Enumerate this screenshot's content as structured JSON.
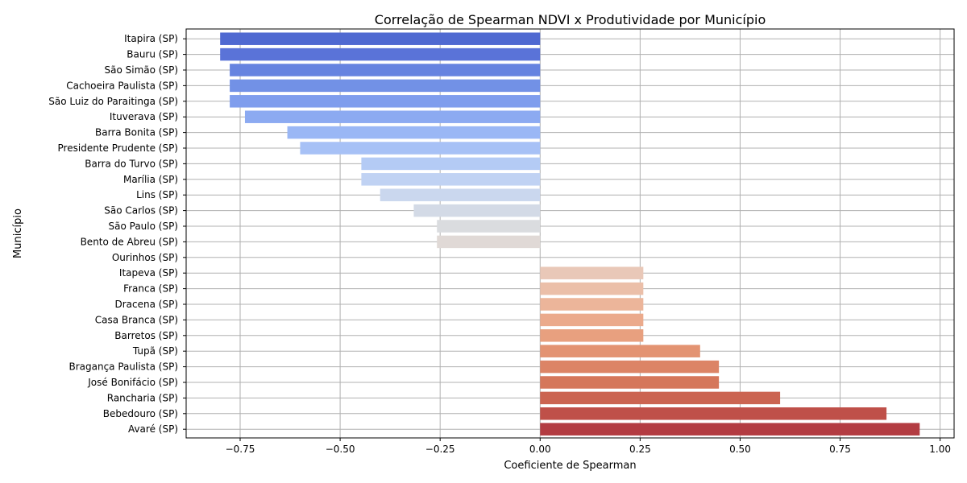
{
  "chart_data": {
    "type": "bar",
    "orientation": "horizontal",
    "title": "Correlação de Spearman NDVI x Produtividade por Município",
    "xlabel": "Coeficiente de Spearman",
    "ylabel": "Município",
    "xlim": [
      -0.885,
      1.035
    ],
    "xticks": [
      -0.75,
      -0.5,
      -0.25,
      0.0,
      0.25,
      0.5,
      0.75,
      1.0
    ],
    "xtick_labels": [
      "−0.75",
      "−0.50",
      "−0.25",
      "0.00",
      "0.25",
      "0.50",
      "0.75",
      "1.00"
    ],
    "grid": true,
    "categories": [
      "Itapira (SP)",
      "Bauru (SP)",
      "São Simão (SP)",
      "Cachoeira Paulista (SP)",
      "São Luiz do Paraitinga (SP)",
      "Ituverava (SP)",
      "Barra Bonita (SP)",
      "Presidente Prudente (SP)",
      "Barra do Turvo (SP)",
      "Marília (SP)",
      "Lins (SP)",
      "São Carlos (SP)",
      "São Paulo (SP)",
      "Bento de Abreu (SP)",
      "Ourinhos (SP)",
      "Itapeva (SP)",
      "Franca (SP)",
      "Dracena (SP)",
      "Casa Branca (SP)",
      "Barretos (SP)",
      "Tupã (SP)",
      "Bragança Paulista (SP)",
      "José Bonifácio (SP)",
      "Rancharia (SP)",
      "Bebedouro (SP)",
      "Avaré (SP)"
    ],
    "values": [
      -0.8,
      -0.8,
      -0.776,
      -0.776,
      -0.776,
      -0.738,
      -0.632,
      -0.6,
      -0.447,
      -0.447,
      -0.4,
      -0.316,
      -0.258,
      -0.258,
      0.0,
      0.258,
      0.258,
      0.258,
      0.258,
      0.258,
      0.4,
      0.447,
      0.447,
      0.6,
      0.866,
      0.949
    ],
    "colors": [
      "#4f69d1",
      "#5a73d8",
      "#6683e0",
      "#7291e6",
      "#7f9ded",
      "#8caaf1",
      "#9ab7f5",
      "#a7c1f6",
      "#b4cbf5",
      "#c0d2f3",
      "#cad7ee",
      "#d3dae6",
      "#dadcdf",
      "#e0d9d6",
      "#e6d2c9",
      "#e9c8b8",
      "#ebbfa9",
      "#ecb59a",
      "#ebaa8c",
      "#e8a07f",
      "#e39372",
      "#dc8466",
      "#d5775b",
      "#cb6451",
      "#bf5049",
      "#b33c42"
    ]
  }
}
